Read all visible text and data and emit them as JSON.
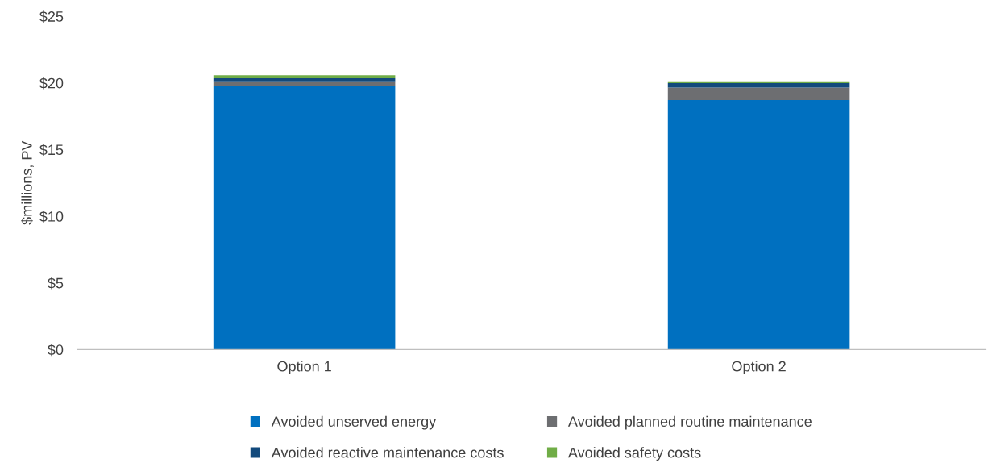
{
  "chart_data": {
    "type": "bar",
    "stacked": true,
    "ylabel": "$millions, PV",
    "categories": [
      "Option 1",
      "Option 2"
    ],
    "series": [
      {
        "name": "Avoided unserved energy",
        "color": "#0070c0",
        "values": [
          19.74,
          18.72
        ]
      },
      {
        "name": "Avoided planned routine maintenance",
        "color": "#6d6e71",
        "values": [
          0.32,
          0.93
        ]
      },
      {
        "name": "Avoided reactive maintenance costs",
        "color": "#124a7c",
        "values": [
          0.29,
          0.33
        ]
      },
      {
        "name": "Avoided safety costs",
        "color": "#70ad47",
        "values": [
          0.22,
          0.08
        ]
      }
    ],
    "ylim": [
      0,
      25
    ],
    "yticks": [
      {
        "value": 0,
        "label": "$0"
      },
      {
        "value": 5,
        "label": "$5"
      },
      {
        "value": 10,
        "label": "$10"
      },
      {
        "value": 15,
        "label": "$15"
      },
      {
        "value": 20,
        "label": "$20"
      },
      {
        "value": 25,
        "label": "$25"
      }
    ],
    "grid": false,
    "legend": "bottom"
  }
}
